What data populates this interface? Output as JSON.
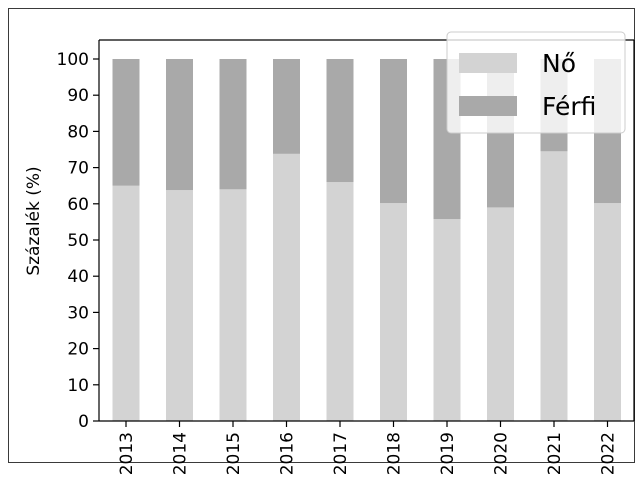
{
  "chart_data": {
    "type": "bar",
    "stacked": true,
    "categories": [
      "2013",
      "2014",
      "2015",
      "2016",
      "2017",
      "2018",
      "2019",
      "2020",
      "2021",
      "2022"
    ],
    "series": [
      {
        "name": "Nő",
        "color": "#d3d3d3",
        "values": [
          65,
          63.8,
          64,
          73.8,
          66,
          60.2,
          55.8,
          59,
          74.5,
          60.2
        ]
      },
      {
        "name": "Férfi",
        "color": "#a9a9a9",
        "values": [
          35,
          36.2,
          36,
          26.2,
          34,
          39.8,
          44.2,
          41,
          25.5,
          39.8
        ]
      }
    ],
    "title": "",
    "xlabel": "",
    "ylabel": "Százalék (%)",
    "ylim": [
      0,
      100
    ],
    "yticks": [
      0,
      10,
      20,
      30,
      40,
      50,
      60,
      70,
      80,
      90,
      100
    ],
    "grid": false,
    "legend": "top-right"
  }
}
